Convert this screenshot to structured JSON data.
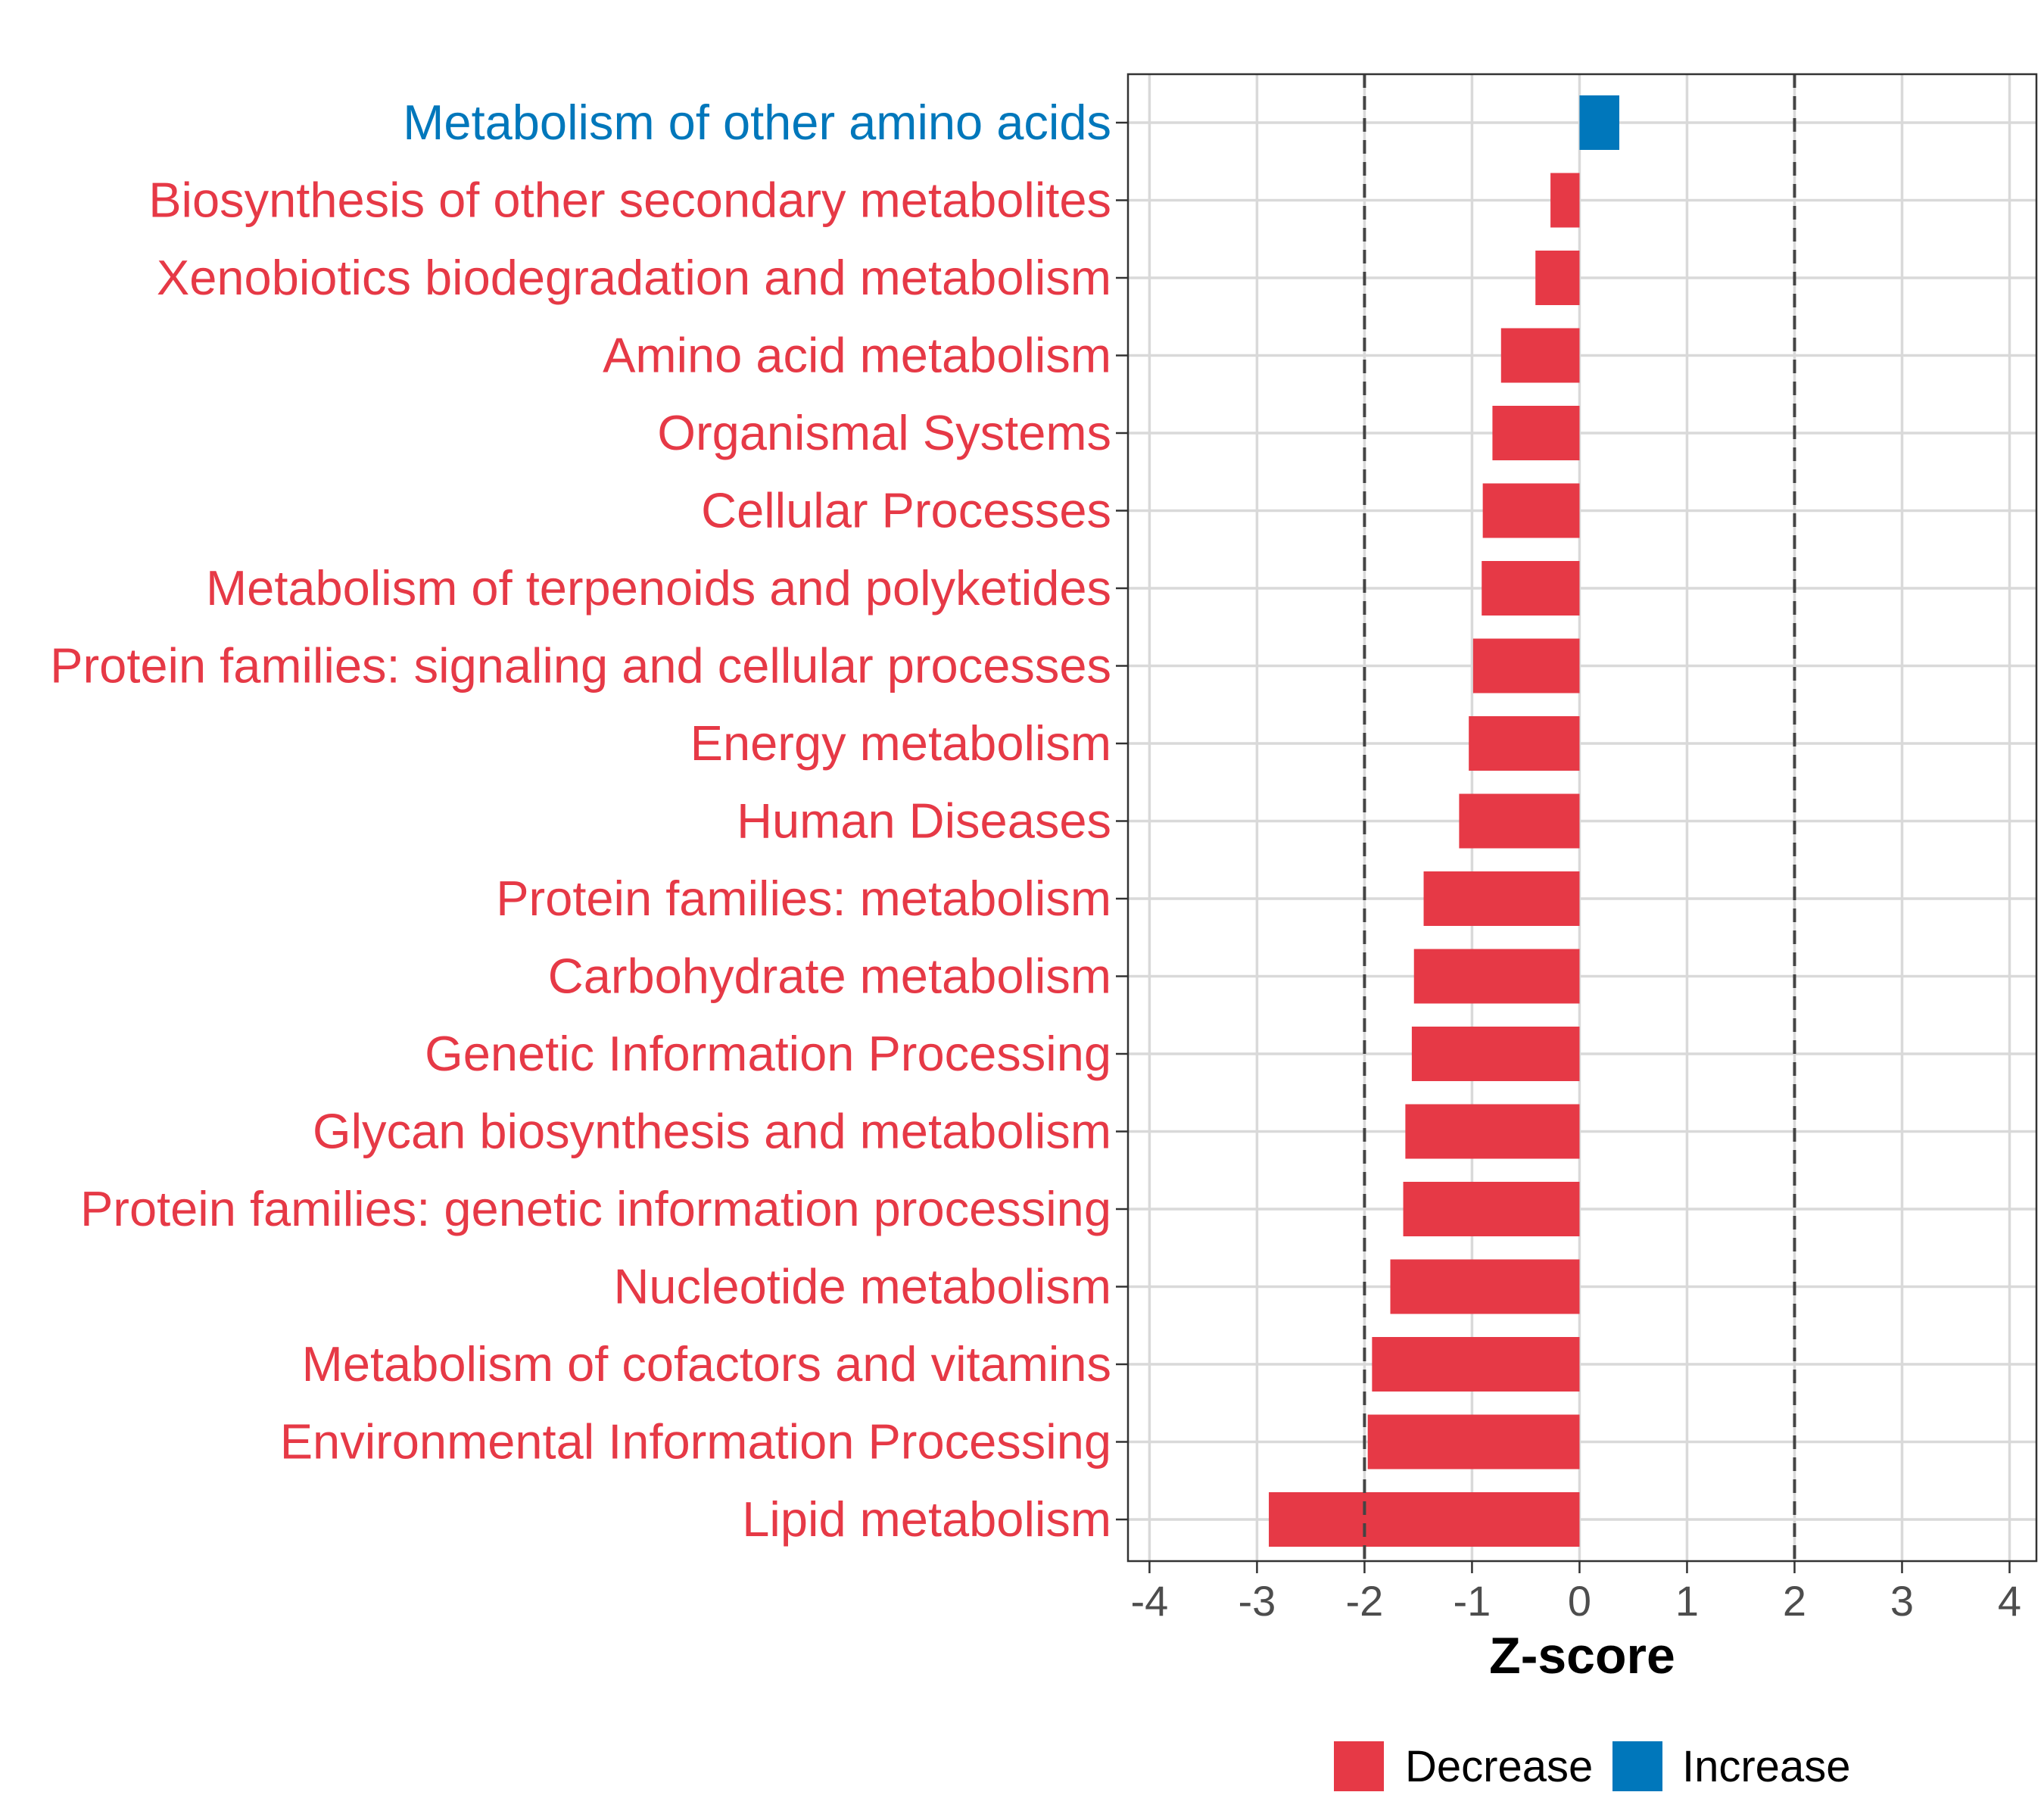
{
  "chart_data": {
    "type": "bar",
    "orientation": "horizontal",
    "categories": [
      "Metabolism of other amino acids",
      "Biosynthesis of other secondary metabolites",
      "Xenobiotics biodegradation and metabolism",
      "Amino acid metabolism",
      "Organismal Systems",
      "Cellular Processes",
      "Metabolism of terpenoids and polyketides",
      "Protein families: signaling and cellular processes",
      "Energy metabolism",
      "Human Diseases",
      "Protein families: metabolism",
      "Carbohydrate metabolism",
      "Genetic Information Processing",
      "Glycan biosynthesis and metabolism",
      "Protein families: genetic information processing",
      "Nucleotide metabolism",
      "Metabolism of cofactors and vitamins",
      "Environmental Information Processing",
      "Lipid metabolism"
    ],
    "values": [
      0.37,
      -0.27,
      -0.41,
      -0.73,
      -0.81,
      -0.9,
      -0.91,
      -0.99,
      -1.03,
      -1.12,
      -1.45,
      -1.54,
      -1.56,
      -1.62,
      -1.64,
      -1.76,
      -1.93,
      -1.97,
      -2.89
    ],
    "xlabel": "Z-score",
    "xlim": [
      -4.2,
      4.25
    ],
    "xticks": [
      -4,
      -3,
      -2,
      -1,
      0,
      1,
      2,
      3,
      4
    ],
    "reference_lines": [
      -2,
      2
    ],
    "grid": true,
    "legend": {
      "position": "bottom",
      "entries": [
        {
          "label": "Decrease",
          "color": "#E63946"
        },
        {
          "label": "Increase",
          "color": "#0077BB"
        }
      ]
    },
    "colors": {
      "decrease": "#E63946",
      "increase": "#0077BB"
    }
  }
}
